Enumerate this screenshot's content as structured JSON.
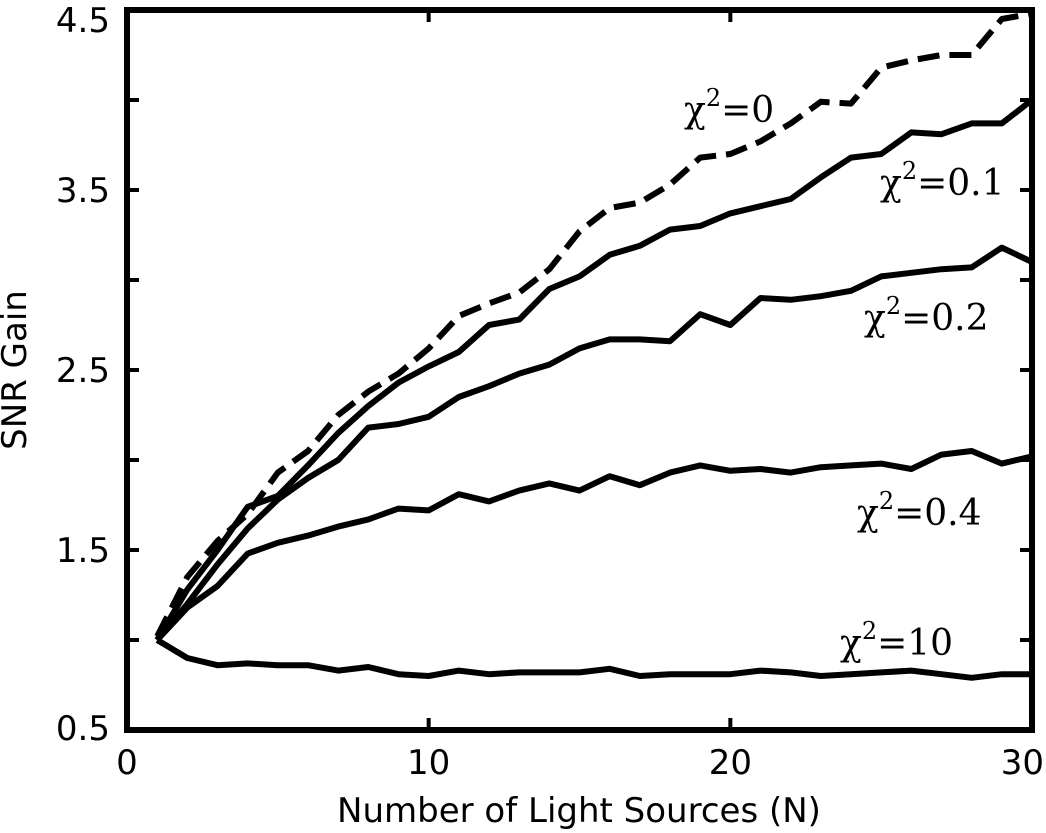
{
  "chart_data": {
    "type": "line",
    "title": "",
    "xlabel": "Number of Light Sources (N)",
    "ylabel": "SNR Gain",
    "xlim": [
      0,
      30
    ],
    "ylim": [
      0.5,
      4.5
    ],
    "xticks": [
      0,
      10,
      20,
      30
    ],
    "xtick_labels": [
      "0",
      "10",
      "20",
      "30"
    ],
    "yticks": [
      0.5,
      1.5,
      2.5,
      3.5,
      4.5
    ],
    "ytick_labels": [
      "0.5",
      "1.5",
      "2.5",
      "3.5",
      "4.5"
    ],
    "grid": false,
    "x": [
      1,
      2,
      3,
      4,
      5,
      6,
      7,
      8,
      9,
      10,
      11,
      12,
      13,
      14,
      15,
      16,
      17,
      18,
      19,
      20,
      21,
      22,
      23,
      24,
      25,
      26,
      27,
      28,
      29,
      30
    ],
    "series": [
      {
        "name": "χ²=0",
        "style": "dashed",
        "color": "#000000",
        "annotation": {
          "base": "χ",
          "sup": "2",
          "rest": "=0"
        },
        "values": [
          1.02,
          1.35,
          1.55,
          1.7,
          1.93,
          2.05,
          2.25,
          2.38,
          2.48,
          2.62,
          2.8,
          2.87,
          2.93,
          3.06,
          3.27,
          3.4,
          3.43,
          3.53,
          3.68,
          3.7,
          3.77,
          3.87,
          3.99,
          3.98,
          4.18,
          4.22,
          4.25,
          4.25,
          4.45,
          4.48
        ]
      },
      {
        "name": "χ²=0.1",
        "style": "solid",
        "color": "#000000",
        "annotation": {
          "base": "χ",
          "sup": "2",
          "rest": "=0.1"
        },
        "values": [
          1.0,
          1.28,
          1.5,
          1.74,
          1.8,
          1.97,
          2.15,
          2.3,
          2.43,
          2.52,
          2.6,
          2.75,
          2.78,
          2.95,
          3.02,
          3.14,
          3.19,
          3.28,
          3.3,
          3.37,
          3.41,
          3.45,
          3.57,
          3.68,
          3.7,
          3.82,
          3.81,
          3.87,
          3.87,
          4.0
        ]
      },
      {
        "name": "χ²=0.2",
        "style": "solid",
        "color": "#000000",
        "annotation": {
          "base": "χ",
          "sup": "2",
          "rest": "=0.2"
        },
        "values": [
          1.0,
          1.18,
          1.3,
          1.48,
          1.54,
          1.58,
          1.63,
          1.67,
          1.73,
          1.72,
          1.81,
          1.77,
          1.83,
          1.87,
          1.83,
          1.91,
          1.86,
          1.93,
          1.97,
          1.94,
          1.95,
          1.93,
          1.96,
          1.97,
          1.98,
          1.95,
          2.03,
          2.05,
          1.98,
          2.02
        ]
      },
      {
        "name": "χ²=0.4",
        "style": "solid",
        "color": "#000000",
        "annotation": {
          "base": "χ",
          "sup": "2",
          "rest": "=0.4"
        },
        "values": [
          1.0,
          1.2,
          1.42,
          1.62,
          1.78,
          1.9,
          2.0,
          2.18,
          2.2,
          2.24,
          2.35,
          2.41,
          2.48,
          2.53,
          2.62,
          2.67,
          2.67,
          2.66,
          2.81,
          2.75,
          2.9,
          2.89,
          2.91,
          2.94,
          3.02,
          3.04,
          3.06,
          3.07,
          3.18,
          3.1
        ]
      },
      {
        "name": "χ²=10",
        "style": "solid",
        "color": "#000000",
        "annotation": {
          "base": "χ",
          "sup": "2",
          "rest": "=10"
        },
        "values": [
          1.0,
          0.9,
          0.86,
          0.87,
          0.86,
          0.86,
          0.83,
          0.85,
          0.81,
          0.8,
          0.83,
          0.81,
          0.82,
          0.82,
          0.82,
          0.84,
          0.8,
          0.81,
          0.81,
          0.81,
          0.83,
          0.82,
          0.8,
          0.81,
          0.82,
          0.83,
          0.81,
          0.79,
          0.81,
          0.81
        ]
      }
    ]
  }
}
